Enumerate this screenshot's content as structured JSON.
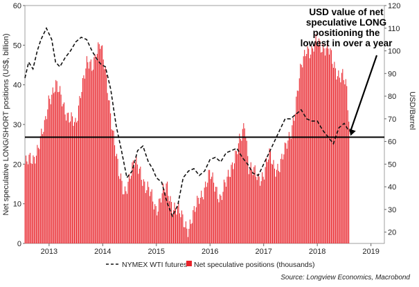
{
  "chart_data": {
    "type": "bar",
    "title": "",
    "ylabel": "Net speculative LONG/SHORT positions (US$, billion)",
    "y2label": "USD/Barrel",
    "ylim": [
      0,
      60
    ],
    "y2lim": [
      15,
      120
    ],
    "y_ticks": [
      0,
      10,
      20,
      30,
      40,
      50,
      60
    ],
    "y2_ticks": [
      20,
      30,
      40,
      50,
      60,
      70,
      80,
      90,
      100,
      110,
      120
    ],
    "x_range": [
      2012.55,
      2019.25
    ],
    "x_ticks": [
      {
        "label": "2013",
        "value": 2013.0
      },
      {
        "label": "2014",
        "value": 2014.0
      },
      {
        "label": "2015",
        "value": 2015.0
      },
      {
        "label": "2016",
        "value": 2016.0
      },
      {
        "label": "2017",
        "value": 2017.0
      },
      {
        "label": "2018",
        "value": 2018.0
      },
      {
        "label": "2019",
        "value": 2019.0
      }
    ],
    "reference_line": {
      "value": 26.8,
      "axis": "left"
    },
    "annotation": {
      "lines": [
        "USD value of net",
        "speculative LONG",
        "positioning the",
        "lowest in over a year"
      ],
      "arrow_target": {
        "x": 2018.62,
        "y": 26.8
      }
    },
    "series": [
      {
        "name": "Net speculative positions (thousands)",
        "type": "bar",
        "axis": "left",
        "color": "#e8232a",
        "x": [
          2012.55,
          2012.7,
          2012.8,
          2012.92,
          2013.0,
          2013.12,
          2013.3,
          2013.5,
          2013.6,
          2013.7,
          2013.8,
          2013.88,
          2013.95,
          2014.0,
          2014.1,
          2014.2,
          2014.3,
          2014.4,
          2014.5,
          2014.6,
          2014.7,
          2014.8,
          2014.9,
          2015.0,
          2015.1,
          2015.2,
          2015.3,
          2015.4,
          2015.5,
          2015.6,
          2015.7,
          2015.8,
          2015.9,
          2016.0,
          2016.1,
          2016.2,
          2016.3,
          2016.4,
          2016.5,
          2016.6,
          2016.65,
          2016.72,
          2016.8,
          2016.9,
          2017.0,
          2017.1,
          2017.2,
          2017.3,
          2017.4,
          2017.5,
          2017.6,
          2017.7,
          2017.8,
          2017.9,
          2018.0,
          2018.1,
          2018.2,
          2018.3,
          2018.4,
          2018.48,
          2018.55,
          2018.6
        ],
        "values": [
          20,
          21,
          25,
          29,
          37,
          40,
          34,
          29,
          40,
          45,
          44,
          49,
          51,
          47,
          38,
          28,
          17,
          13,
          17,
          20,
          19,
          14,
          12,
          9,
          12,
          14,
          10,
          8,
          6,
          4,
          7,
          12,
          14,
          17,
          15,
          11,
          15,
          20,
          23,
          27,
          31,
          20,
          18,
          16,
          18,
          22,
          19,
          20,
          23,
          28,
          35,
          44,
          50,
          48,
          51,
          50,
          49,
          45,
          43,
          42,
          38,
          29
        ]
      },
      {
        "name": "NYMEX WTI futures",
        "type": "line",
        "axis": "right",
        "style": "dashed",
        "color": "#111111",
        "x": [
          2012.55,
          2012.62,
          2012.7,
          2012.78,
          2012.85,
          2012.95,
          2013.05,
          2013.12,
          2013.2,
          2013.3,
          2013.4,
          2013.5,
          2013.6,
          2013.7,
          2013.8,
          2013.9,
          2013.97,
          2014.05,
          2014.15,
          2014.25,
          2014.35,
          2014.45,
          2014.55,
          2014.65,
          2014.75,
          2014.85,
          2014.93,
          2015.0,
          2015.1,
          2015.2,
          2015.3,
          2015.4,
          2015.5,
          2015.6,
          2015.7,
          2015.8,
          2015.9,
          2016.0,
          2016.1,
          2016.2,
          2016.3,
          2016.4,
          2016.5,
          2016.6,
          2016.7,
          2016.8,
          2016.9,
          2017.0,
          2017.1,
          2017.2,
          2017.3,
          2017.4,
          2017.5,
          2017.6,
          2017.7,
          2017.8,
          2017.9,
          2018.0,
          2018.1,
          2018.2,
          2018.3,
          2018.4,
          2018.5,
          2018.58,
          2018.65
        ],
        "values": [
          88,
          95,
          92,
          100,
          105,
          110,
          105,
          95,
          93,
          97,
          100,
          104,
          106,
          105,
          100,
          96,
          94,
          93,
          83,
          67,
          56,
          44,
          47,
          56,
          58,
          51,
          48,
          44,
          42,
          33,
          27,
          32,
          44,
          47,
          48,
          45,
          47,
          52,
          53,
          51,
          55,
          56,
          57,
          53,
          50,
          46,
          45,
          50,
          55,
          60,
          65,
          70,
          70,
          72,
          74,
          70,
          69,
          69,
          65,
          62,
          59,
          66,
          68,
          65,
          64
        ]
      }
    ],
    "legend": [
      {
        "label": "NYMEX WTI futures",
        "marker": "dashed-line"
      },
      {
        "label": "Net speculative positions (thousands)",
        "marker": "red-square"
      }
    ],
    "source": "Source: Longview Economics, Macrobond"
  }
}
